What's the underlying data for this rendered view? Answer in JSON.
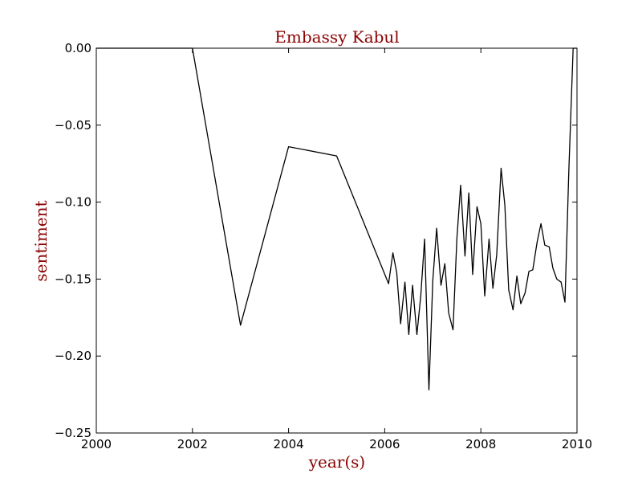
{
  "chart_data": {
    "type": "line",
    "title": "Embassy Kabul",
    "xlabel": "year(s)",
    "ylabel": "sentiment",
    "xlim": [
      2000,
      2010
    ],
    "ylim": [
      -0.25,
      0.0
    ],
    "x_ticks": [
      2000,
      2002,
      2004,
      2006,
      2008,
      2010
    ],
    "x_tick_labels": [
      "2000",
      "2002",
      "2004",
      "2006",
      "2008",
      "2010"
    ],
    "y_ticks": [
      0.0,
      -0.05,
      -0.1,
      -0.15,
      -0.2,
      -0.25
    ],
    "y_tick_labels": [
      "0.00",
      "−0.05",
      "−0.10",
      "−0.15",
      "−0.20",
      "−0.25"
    ],
    "grid": false,
    "line_color": "#000000",
    "title_color": "#8b0000",
    "label_color": "#8b0000",
    "series": [
      {
        "x": [
          2000.0,
          2002.0,
          2003.0,
          2004.0,
          2005.0,
          2006.08,
          2006.17,
          2006.25,
          2006.33,
          2006.42,
          2006.5,
          2006.58,
          2006.67,
          2006.75,
          2006.83,
          2006.92,
          2007.0,
          2007.08,
          2007.17,
          2007.25,
          2007.33,
          2007.42,
          2007.5,
          2007.58,
          2007.67,
          2007.75,
          2007.83,
          2007.92,
          2008.0,
          2008.08,
          2008.17,
          2008.25,
          2008.33,
          2008.42,
          2008.5,
          2008.58,
          2008.67,
          2008.75,
          2008.83,
          2008.92,
          2009.0,
          2009.08,
          2009.17,
          2009.25,
          2009.33,
          2009.42,
          2009.5,
          2009.58,
          2009.67,
          2009.75,
          2009.83,
          2009.92,
          2010.0
        ],
        "y": [
          0.0,
          0.0,
          -0.18,
          -0.064,
          -0.07,
          -0.153,
          -0.133,
          -0.146,
          -0.179,
          -0.152,
          -0.186,
          -0.154,
          -0.186,
          -0.161,
          -0.124,
          -0.222,
          -0.151,
          -0.117,
          -0.154,
          -0.14,
          -0.172,
          -0.183,
          -0.124,
          -0.089,
          -0.135,
          -0.094,
          -0.147,
          -0.103,
          -0.114,
          -0.161,
          -0.124,
          -0.156,
          -0.134,
          -0.078,
          -0.102,
          -0.157,
          -0.17,
          -0.148,
          -0.166,
          -0.159,
          -0.145,
          -0.144,
          -0.126,
          -0.114,
          -0.128,
          -0.129,
          -0.143,
          -0.15,
          -0.152,
          -0.165,
          -0.08,
          0.0,
          0.0
        ]
      }
    ]
  }
}
